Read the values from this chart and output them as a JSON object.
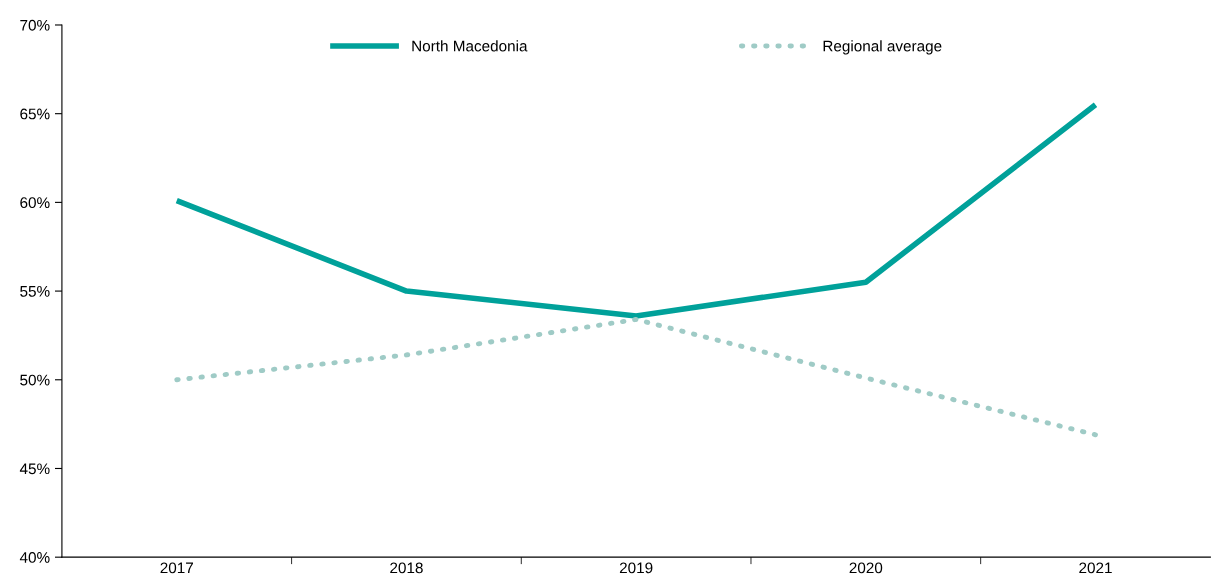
{
  "chart_data": {
    "type": "line",
    "categories": [
      "2017",
      "2018",
      "2019",
      "2020",
      "2021"
    ],
    "series": [
      {
        "name": "North Macedonia",
        "color": "#00a19a",
        "values": [
          60.1,
          55.0,
          53.6,
          55.5,
          65.5
        ],
        "line_style": "solid"
      },
      {
        "name": "Regional average",
        "color": "#9fcbc6",
        "values": [
          50.0,
          51.4,
          53.4,
          50.1,
          46.9
        ],
        "line_style": "dotted"
      }
    ],
    "ylim": [
      40,
      70
    ],
    "yticks": [
      {
        "value": 40,
        "label": "40%"
      },
      {
        "value": 45,
        "label": "45%"
      },
      {
        "value": 50,
        "label": "50%"
      },
      {
        "value": 55,
        "label": "55%"
      },
      {
        "value": 60,
        "label": "60%"
      },
      {
        "value": 65,
        "label": "65%"
      },
      {
        "value": 70,
        "label": "70%"
      }
    ],
    "grid": false,
    "legend": "top",
    "marker": "none"
  }
}
